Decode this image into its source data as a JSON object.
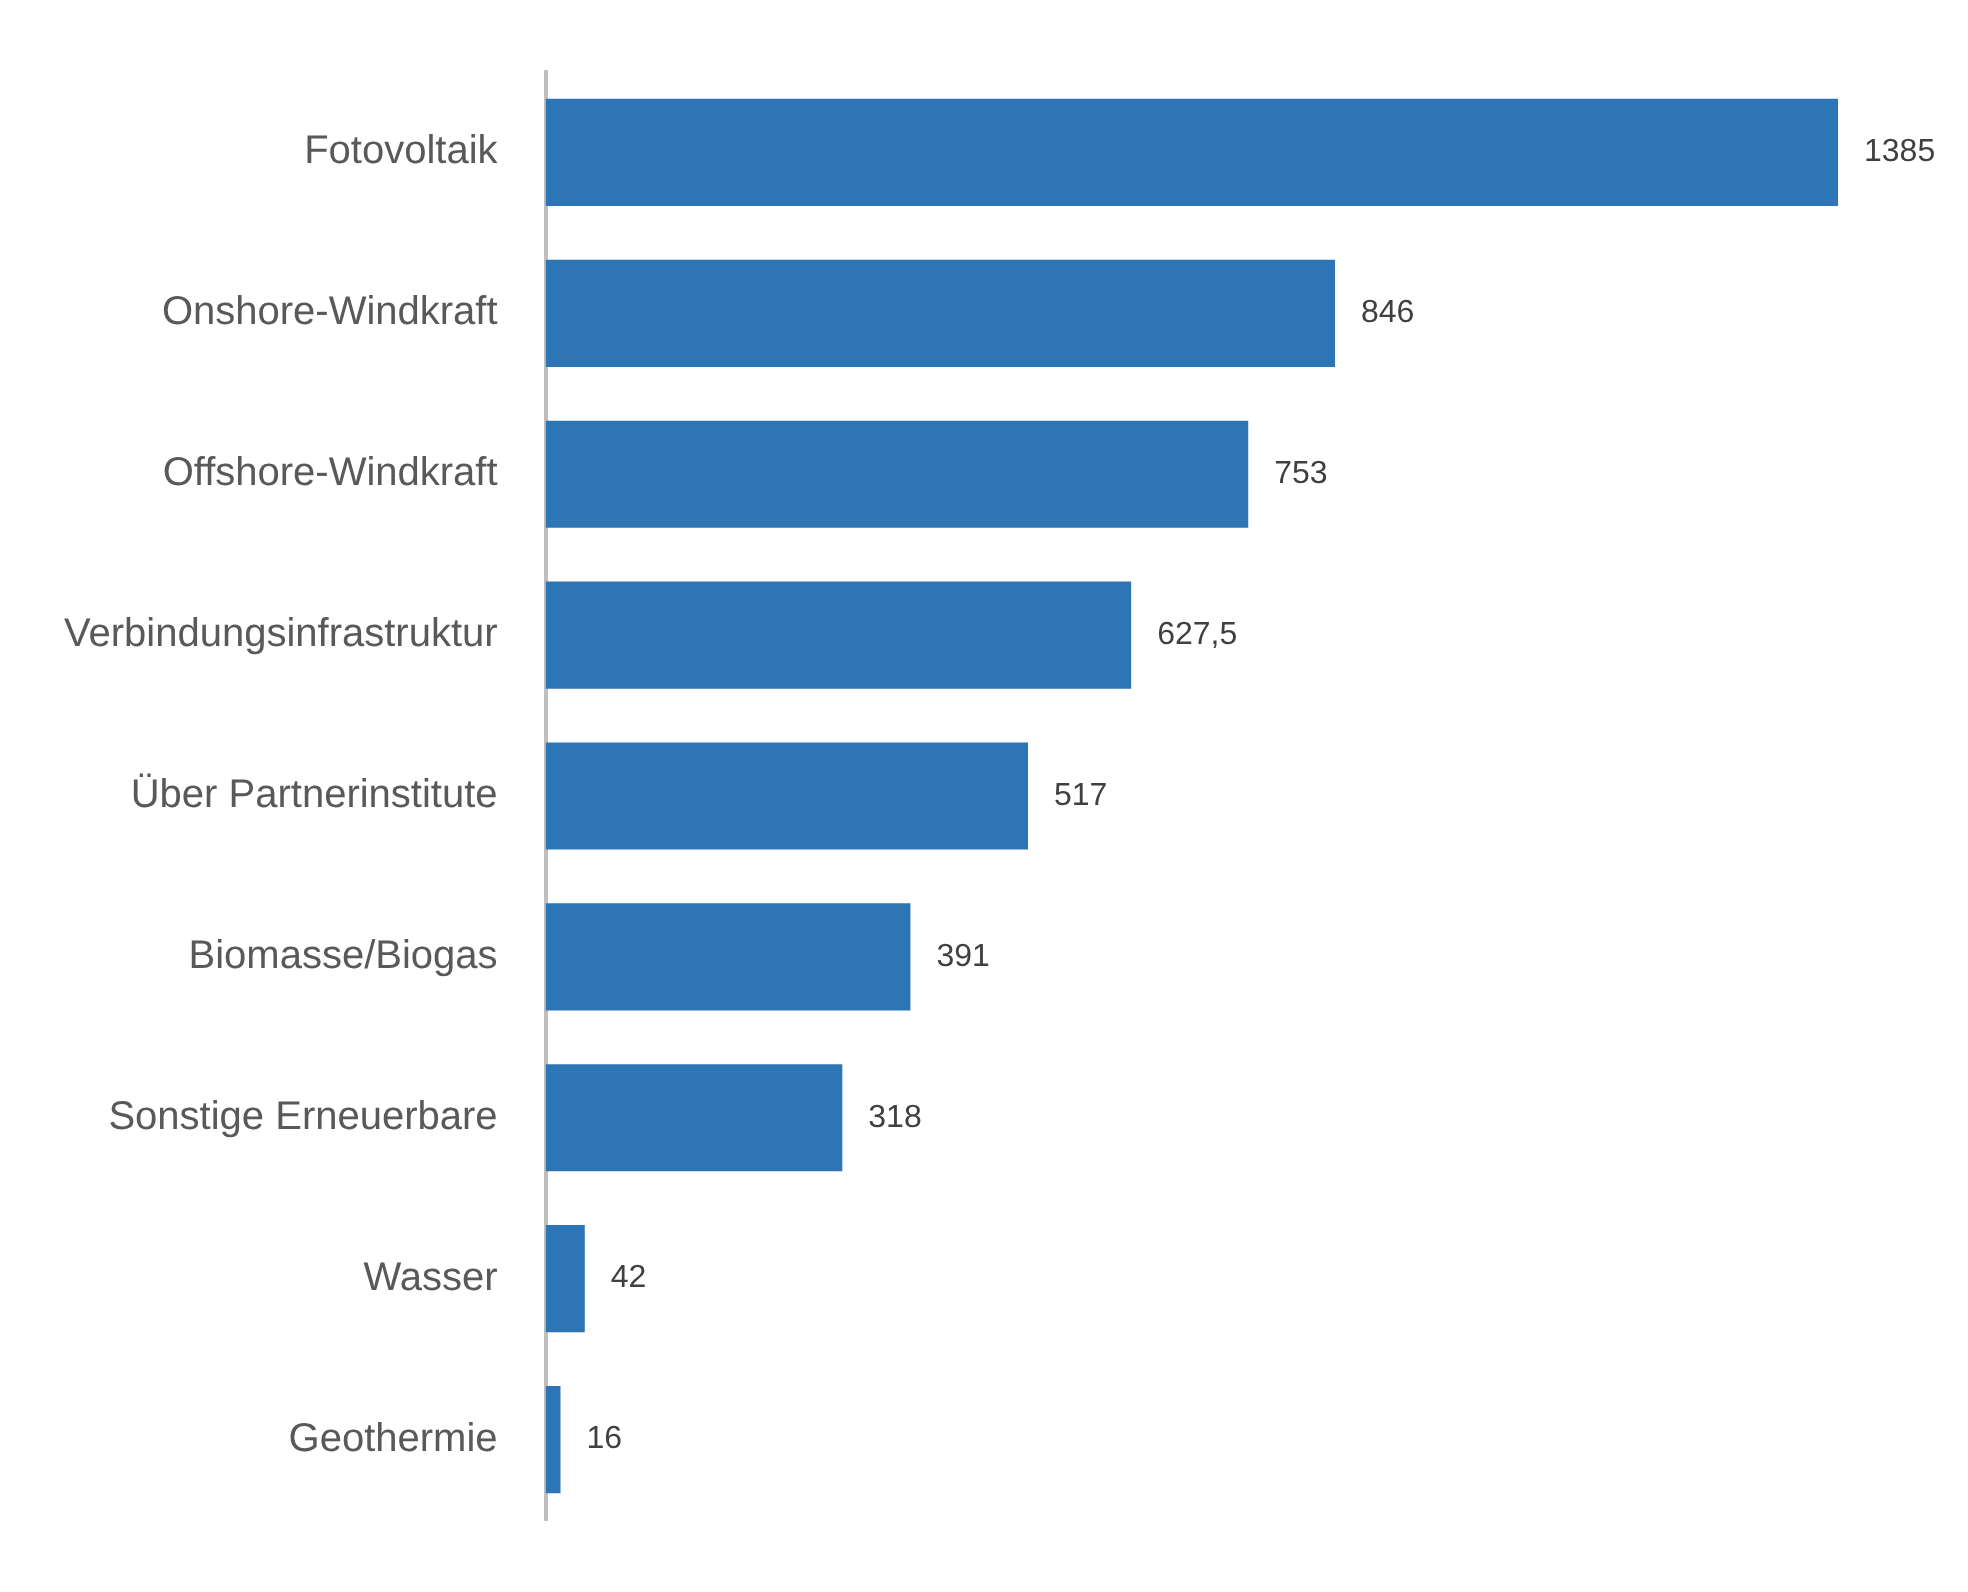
{
  "chart_data": {
    "type": "bar",
    "orientation": "horizontal",
    "categories": [
      "Fotovoltaik",
      "Onshore-Windkraft",
      "Offshore-Windkraft",
      "Verbindungsinfrastruktur",
      "Über Partnerinstitute",
      "Biomasse/Biogas",
      "Sonstige Erneuerbare",
      "Wasser",
      "Geothermie"
    ],
    "values": [
      1385,
      846,
      753,
      627.5,
      517,
      391,
      318,
      42,
      16
    ],
    "value_labels": [
      "1385",
      "846",
      "753",
      "627,5",
      "517",
      "391",
      "318",
      "42",
      "16"
    ],
    "color": "#2e75b6",
    "tick_labels": "y",
    "legend": false
  }
}
